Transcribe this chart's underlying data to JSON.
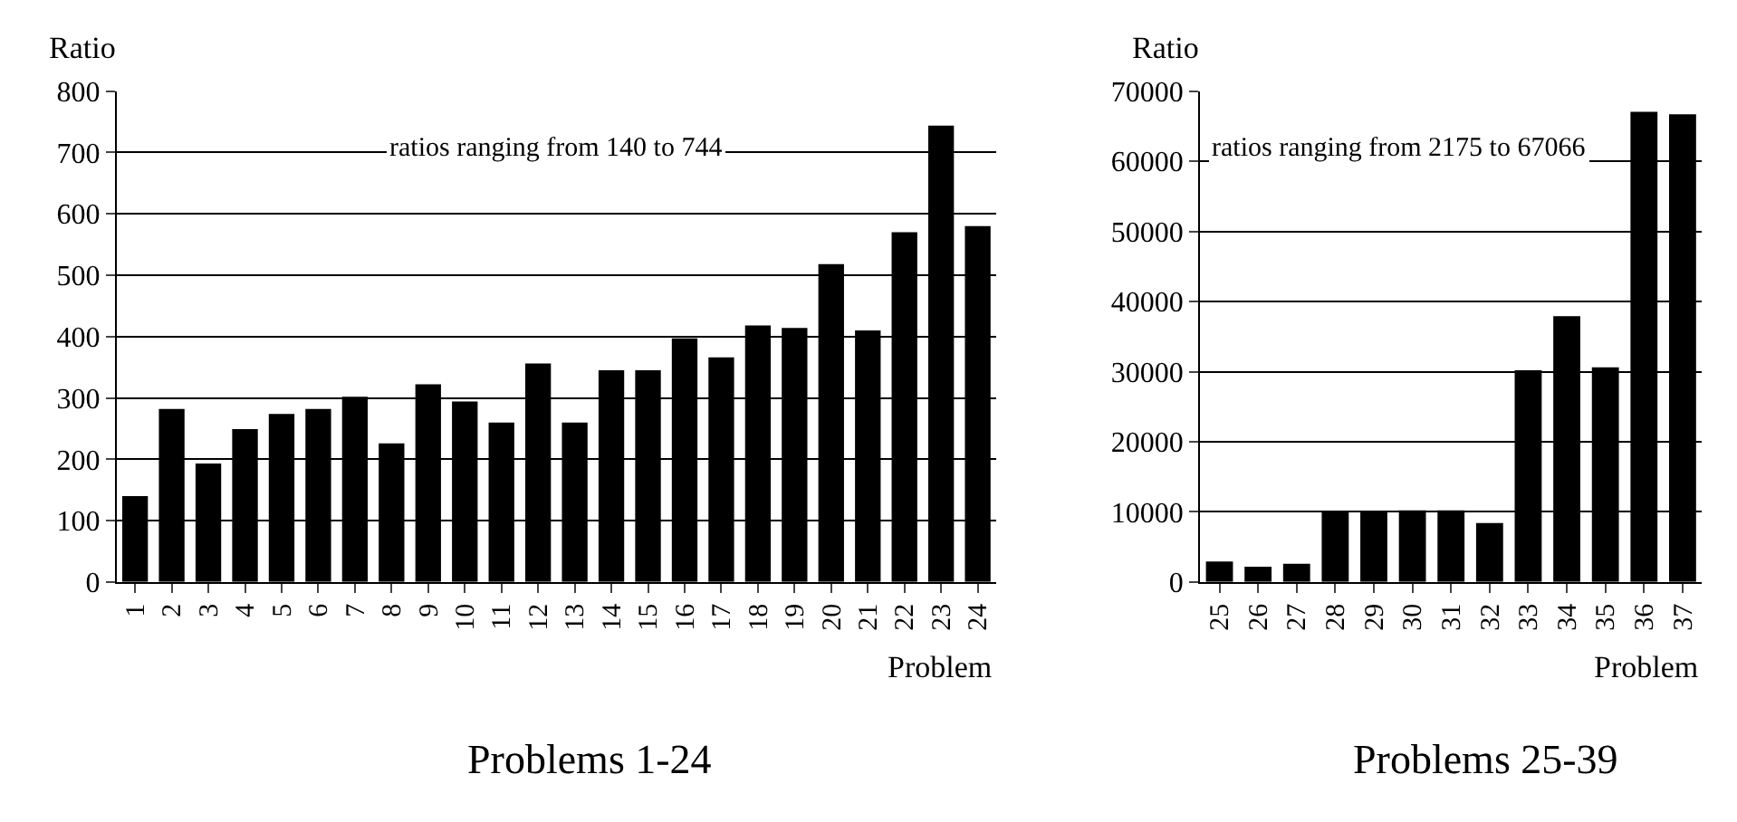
{
  "chart_data": [
    {
      "type": "bar",
      "title": "Problems 1-24",
      "xlabel": "Problem",
      "ylabel": "Ratio",
      "categories": [
        "1",
        "2",
        "3",
        "4",
        "5",
        "6",
        "7",
        "8",
        "9",
        "10",
        "11",
        "12",
        "13",
        "14",
        "15",
        "16",
        "17",
        "18",
        "19",
        "20",
        "21",
        "22",
        "23",
        "24"
      ],
      "series": [
        {
          "color": "#000000",
          "values": [
            140,
            282,
            193,
            249,
            274,
            282,
            302,
            226,
            322,
            294,
            260,
            356,
            260,
            345,
            345,
            397,
            366,
            418,
            414,
            518,
            410,
            570,
            744,
            580
          ]
        }
      ],
      "ylim": [
        0,
        800
      ],
      "yticks": [
        0,
        100,
        200,
        300,
        400,
        500,
        600,
        700,
        800
      ],
      "grid": "y",
      "annotations": [
        "ratios ranging from 140 to 744"
      ]
    },
    {
      "type": "bar",
      "title": "Problems 25-39",
      "xlabel": "Problem",
      "ylabel": "Ratio",
      "categories": [
        "25",
        "26",
        "27",
        "28",
        "29",
        "30",
        "31",
        "32",
        "33",
        "34",
        "35",
        "36",
        "37"
      ],
      "series": [
        {
          "color": "#000000",
          "values": [
            2900,
            2175,
            2600,
            10000,
            10000,
            10200,
            10200,
            8400,
            30200,
            37900,
            30600,
            67066,
            66700
          ]
        }
      ],
      "ylim": [
        0,
        70000
      ],
      "yticks": [
        0,
        10000,
        20000,
        30000,
        40000,
        50000,
        60000,
        70000
      ],
      "grid": "y",
      "annotations": [
        "ratios ranging from 2175 to 67066"
      ]
    }
  ]
}
